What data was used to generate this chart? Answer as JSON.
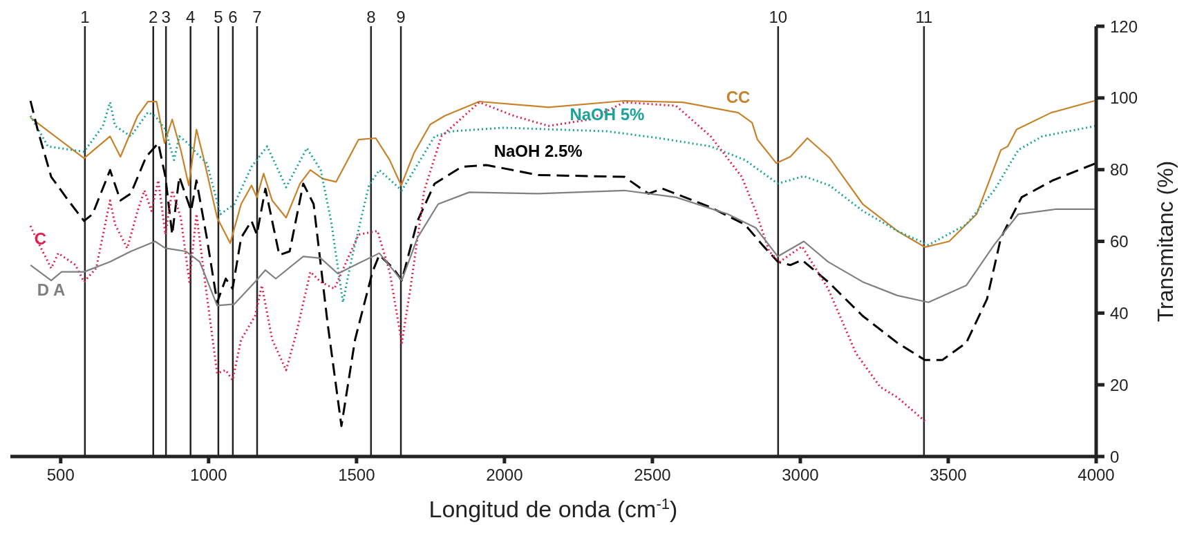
{
  "chart_data": {
    "type": "line",
    "xlabel": "Longitud de onda (cm$^{-1}$)",
    "ylabel": "Transmitanc (%)",
    "xlim": [
      330,
      4000
    ],
    "xticks": [
      500,
      1000,
      1500,
      2000,
      2500,
      3000,
      3500,
      4000
    ],
    "ylim": [
      0,
      120
    ],
    "yticks": [
      0,
      20,
      40,
      60,
      80,
      100,
      120
    ],
    "marker": "none",
    "series": [
      {
        "name": "CC",
        "color": "#c8822a",
        "line_style": "solid",
        "x": [
          398,
          579,
          667,
          702,
          760,
          795,
          824,
          851,
          877,
          906,
          933,
          959,
          982,
          1029,
          1073,
          1110,
          1145,
          1163,
          1186,
          1215,
          1262,
          1309,
          1344,
          1385,
          1431,
          1507,
          1565,
          1612,
          1651,
          1694,
          1749,
          1798,
          1915,
          2149,
          2405,
          2603,
          2790,
          2837,
          2855,
          2919,
          2966,
          3024,
          3100,
          3211,
          3328,
          3421,
          3503,
          3596,
          3678,
          3701,
          3731,
          3848,
          3994
        ],
        "values": [
          94.5,
          83.2,
          89.3,
          83.6,
          95,
          99,
          99,
          87.4,
          94,
          85.5,
          75.6,
          91.2,
          83.6,
          66.6,
          59.5,
          70.4,
          75.6,
          72.3,
          78.9,
          71.4,
          66.6,
          76.1,
          79.9,
          77.5,
          76.6,
          88.4,
          88.8,
          82.7,
          75.6,
          84.6,
          92.6,
          95,
          99,
          97.4,
          99.2,
          98.8,
          95.9,
          93.1,
          88.4,
          81.8,
          83.6,
          88.8,
          83.2,
          70.4,
          62.9,
          58.4,
          60,
          67.6,
          85.5,
          86.5,
          91.2,
          95.9,
          99.2
        ]
      },
      {
        "name": "NaOH 5%",
        "color": "#1aa39a",
        "line_style": "dotted",
        "x": [
          398,
          457,
          579,
          643,
          667,
          684,
          737,
          795,
          819,
          854,
          883,
          901,
          930,
          959,
          994,
          1040,
          1087,
          1145,
          1198,
          1262,
          1332,
          1379,
          1414,
          1454,
          1484,
          1542,
          1577,
          1653,
          1764,
          1822,
          1997,
          2347,
          2522,
          2697,
          2813,
          2924,
          3012,
          3099,
          3211,
          3328,
          3433,
          3561,
          3655,
          3737,
          3818,
          3999
        ],
        "values": [
          95,
          86.5,
          85,
          92.2,
          98.8,
          92.2,
          89.3,
          96,
          95,
          91.2,
          82.7,
          89.3,
          87.4,
          84.6,
          81.8,
          67.6,
          70.4,
          80.8,
          86.5,
          75.1,
          86,
          79.9,
          65.7,
          43,
          55.3,
          75.6,
          79.9,
          74.2,
          89.3,
          90.7,
          91.7,
          90.7,
          88.8,
          86.5,
          82.7,
          76.1,
          78.2,
          75.6,
          68.5,
          62.9,
          59,
          64.7,
          74.2,
          85.5,
          89.3,
          92.2
        ]
      },
      {
        "name": "NaOH 2.5%",
        "color": "#000000",
        "line_style": "dashed",
        "x": [
          398,
          422,
          468,
          526,
          579,
          608,
          667,
          702,
          737,
          789,
          830,
          854,
          877,
          901,
          941,
          959,
          994,
          1029,
          1058,
          1081,
          1110,
          1145,
          1163,
          1192,
          1239,
          1274,
          1320,
          1355,
          1402,
          1449,
          1495,
          1554,
          1577,
          1624,
          1653,
          1706,
          1764,
          1856,
          1939,
          2114,
          2405,
          2487,
          2534,
          2697,
          2813,
          2872,
          2924,
          2966,
          3006,
          3094,
          3211,
          3328,
          3421,
          3480,
          3561,
          3631,
          3678,
          3748,
          3853,
          3999
        ],
        "values": [
          99.2,
          91.2,
          78,
          71.4,
          65.7,
          67.6,
          79.9,
          71.4,
          73.3,
          83.6,
          87.4,
          78,
          61.9,
          78,
          68.5,
          77,
          61,
          43,
          49.6,
          46.8,
          61,
          65.7,
          61.9,
          74.7,
          56.2,
          57.2,
          76.1,
          70.4,
          37.3,
          8.5,
          32.6,
          51.5,
          56.2,
          52.5,
          49.1,
          65.7,
          76.1,
          80.8,
          81.3,
          78.5,
          78,
          73.3,
          74.7,
          69.5,
          64.7,
          59,
          54.3,
          53.4,
          54.8,
          48.7,
          39.2,
          31.7,
          26.9,
          26.9,
          31.7,
          43.9,
          61,
          72.3,
          77,
          81.8
        ]
      },
      {
        "name": "C",
        "color": "#e0204a",
        "line_style": "dotted",
        "x": [
          398,
          422,
          468,
          492,
          550,
          579,
          620,
          667,
          684,
          725,
          760,
          783,
          807,
          830,
          854,
          877,
          906,
          935,
          959,
          994,
          1029,
          1058,
          1081,
          1110,
          1157,
          1180,
          1215,
          1262,
          1297,
          1344,
          1379,
          1425,
          1507,
          1571,
          1612,
          1653,
          1682,
          1729,
          1787,
          1915,
          2032,
          2149,
          2289,
          2405,
          2580,
          2697,
          2802,
          2849,
          2895,
          2930,
          3006,
          3094,
          3188,
          3270,
          3328,
          3421
        ],
        "values": [
          64.3,
          60,
          52.5,
          56.7,
          53.4,
          48.7,
          52.5,
          71.4,
          64.7,
          58.1,
          68.5,
          74.2,
          68.5,
          77,
          61.9,
          74.2,
          66.6,
          48.7,
          67.6,
          44.9,
          23.2,
          24.1,
          21.3,
          32.6,
          39.2,
          47.7,
          32.6,
          24.1,
          34.5,
          51.5,
          48.7,
          46.8,
          61.9,
          62.9,
          51.5,
          31.7,
          46.8,
          74.2,
          89.3,
          98.8,
          95,
          92.2,
          94,
          98.8,
          97.8,
          89.3,
          78,
          68.5,
          57.2,
          54.3,
          58.6,
          46.8,
          28.8,
          19.4,
          16.5,
          9.9
        ]
      },
      {
        "name": "D A",
        "color": "#808080",
        "line_style": "solid",
        "x": [
          398,
          468,
          503,
          579,
          667,
          737,
          819,
          854,
          924,
          970,
          1029,
          1087,
          1157,
          1192,
          1227,
          1320,
          1379,
          1437,
          1495,
          1577,
          1653,
          1706,
          1776,
          1881,
          2114,
          2405,
          2580,
          2755,
          2849,
          2924,
          3012,
          3094,
          3211,
          3328,
          3433,
          3561,
          3655,
          3737,
          3865,
          3999
        ],
        "values": [
          53.4,
          49.1,
          51.5,
          51.5,
          54.3,
          57.2,
          60,
          58.1,
          57.2,
          54.3,
          42.1,
          42.5,
          48.7,
          52,
          49.6,
          55.8,
          55.3,
          51,
          53.4,
          56.7,
          49.1,
          61,
          70.4,
          73.7,
          73.3,
          74.2,
          72.3,
          67.6,
          63.8,
          55.8,
          60,
          54.3,
          48.7,
          44.9,
          43,
          47.7,
          59,
          67.6,
          69,
          69
        ]
      }
    ],
    "ref_lines": [
      {
        "axis": "x",
        "value": 582
      },
      {
        "axis": "x",
        "value": 813
      },
      {
        "axis": "x",
        "value": 856
      },
      {
        "axis": "x",
        "value": 939
      },
      {
        "axis": "x",
        "value": 1033
      },
      {
        "axis": "x",
        "value": 1082
      },
      {
        "axis": "x",
        "value": 1164
      },
      {
        "axis": "x",
        "value": 1549
      },
      {
        "axis": "x",
        "value": 1650
      },
      {
        "axis": "x",
        "value": 2925
      },
      {
        "axis": "x",
        "value": 3418
      }
    ],
    "annotations": [
      {
        "text": "1",
        "x": 582,
        "y": 120
      },
      {
        "text": "2",
        "x": 813,
        "y": 120
      },
      {
        "text": "3",
        "x": 856,
        "y": 120
      },
      {
        "text": "4",
        "x": 939,
        "y": 120
      },
      {
        "text": "5",
        "x": 1033,
        "y": 120
      },
      {
        "text": "6",
        "x": 1082,
        "y": 120
      },
      {
        "text": "7",
        "x": 1164,
        "y": 120
      },
      {
        "text": "8",
        "x": 1549,
        "y": 120
      },
      {
        "text": "9",
        "x": 1650,
        "y": 120
      },
      {
        "text": "10",
        "x": 2925,
        "y": 120
      },
      {
        "text": "11",
        "x": 3418,
        "y": 120
      }
    ]
  }
}
